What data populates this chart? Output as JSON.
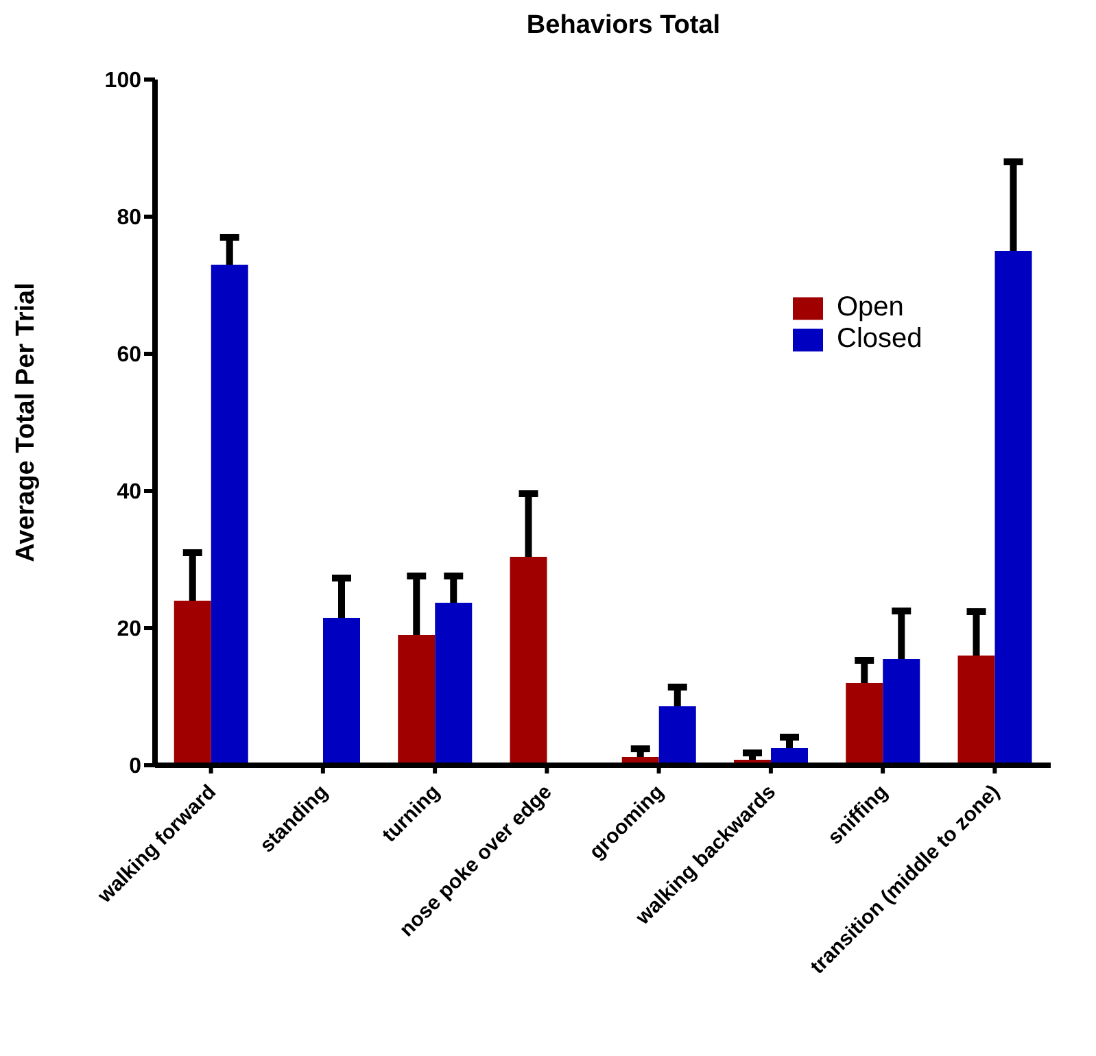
{
  "chart_data": {
    "type": "bar",
    "title": "Behaviors Total",
    "ylabel": "Average Total Per Trial",
    "categories": [
      "walking forward",
      "standing",
      "turning",
      "nose poke over edge",
      "grooming",
      "walking backwards",
      "sniffing",
      "transition (middle to zone)"
    ],
    "series": [
      {
        "name": "Open",
        "color": "#a00000",
        "values": [
          24,
          0,
          19,
          30.4,
          1.2,
          0.8,
          12,
          16
        ],
        "errors": [
          [
            24,
            31
          ],
          null,
          [
            19,
            27.6
          ],
          [
            30.4,
            39.6
          ],
          [
            1.2,
            2.4
          ],
          [
            0.8,
            1.8
          ],
          [
            12,
            15.3
          ],
          [
            16,
            22.4
          ]
        ]
      },
      {
        "name": "Closed",
        "color": "#0000c0",
        "values": [
          73,
          21.5,
          23.7,
          0,
          8.6,
          2.5,
          15.5,
          75
        ],
        "errors": [
          [
            73,
            77
          ],
          [
            21.5,
            27.3
          ],
          [
            23.7,
            27.6
          ],
          null,
          [
            8.6,
            11.4
          ],
          [
            2.5,
            4.1
          ],
          [
            15.5,
            22.5
          ],
          [
            75,
            88
          ]
        ]
      }
    ],
    "ylim": [
      0,
      100
    ],
    "yticks": [
      0,
      20,
      40,
      60,
      80,
      100
    ],
    "grid": false,
    "legend": "top right"
  }
}
